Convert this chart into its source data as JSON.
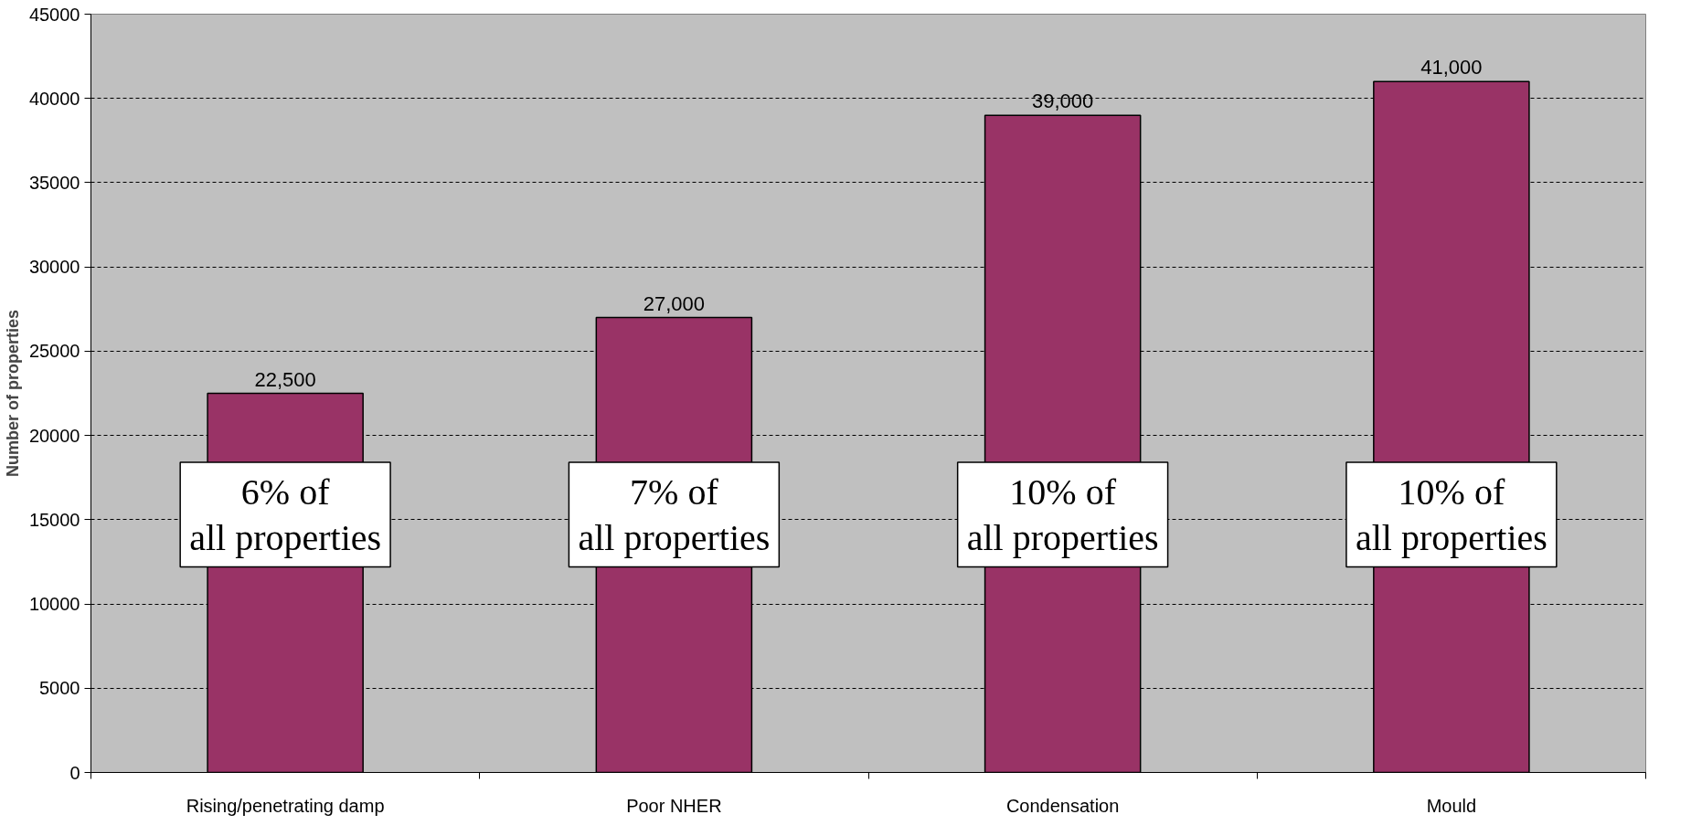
{
  "chart_data": {
    "type": "bar",
    "ylabel": "Number of properties",
    "categories": [
      "Rising/penetrating damp",
      "Poor NHER",
      "Condensation",
      "Mould"
    ],
    "values": [
      22500,
      27000,
      39000,
      41000
    ],
    "value_labels": [
      "22,500",
      "27,000",
      "39,000",
      "41,000"
    ],
    "color": "#993366",
    "ylim": [
      0,
      45000
    ],
    "yticks": [
      0,
      5000,
      10000,
      15000,
      20000,
      25000,
      30000,
      35000,
      40000,
      45000
    ],
    "grid": "y",
    "annotations": [
      "6% of\nall properties",
      "7% of\nall properties",
      "10% of\nall properties",
      "10% of\nall properties"
    ]
  }
}
